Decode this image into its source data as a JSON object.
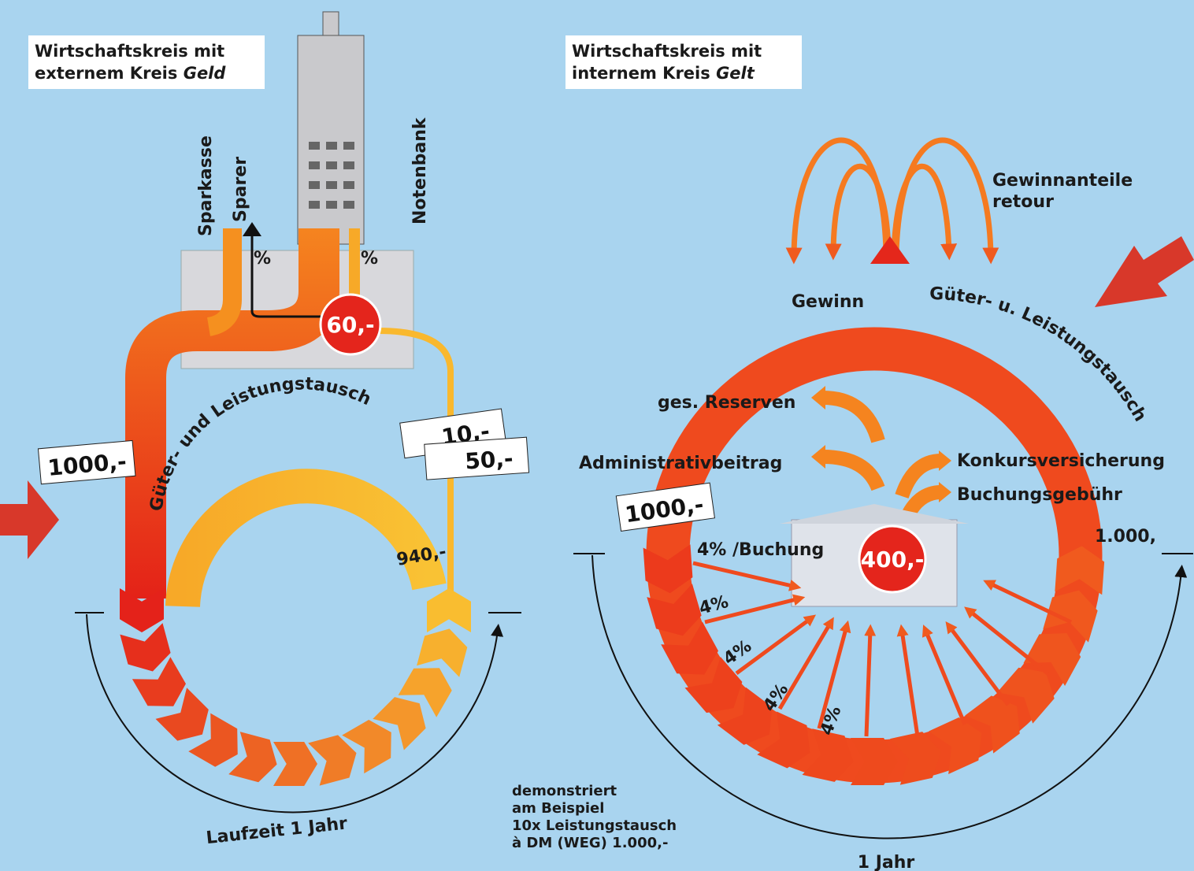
{
  "left": {
    "title": {
      "line1": "Wirtschaftskreis mit",
      "line2": "externem Kreis",
      "emphasis": "Geld"
    },
    "sparkasse": "Sparkasse",
    "sparer": "Sparer",
    "notenbank": "Notenbank",
    "percent_left": "%",
    "percent_right": "%",
    "bank_amount": "60,-",
    "input_amount": "1000,-",
    "interest_top": "10,-",
    "interest_bottom": "50,-",
    "exchange": "Güter- und Leistungstausch",
    "remaining": "940,-",
    "duration": "Laufzeit 1 Jahr"
  },
  "right": {
    "title": {
      "line1": "Wirtschaftskreis mit",
      "line2": "internem Kreis",
      "emphasis": "Gelt"
    },
    "profit_share": {
      "line1": "Gewinnanteile",
      "line2": "retour"
    },
    "profit": "Gewinn",
    "exchange": "Güter- u. Leistungstausch",
    "reserves": "ges. Reserven",
    "admin": "Administrativbeitrag",
    "insurance": "Konkursversicherung",
    "booking_fee": "Buchungsgebühr",
    "input_amount": "1000,-",
    "output_amount": "1.000,",
    "rate_label": "4% /Buchung",
    "center_amount": "400,-",
    "rates": [
      "4%",
      "4%",
      "4%",
      "4%"
    ],
    "duration": "1 Jahr"
  },
  "footnote": [
    "demonstriert",
    "am Beispiel",
    "10x Leistungstausch",
    "à DM (WEG) 1.000,-"
  ]
}
